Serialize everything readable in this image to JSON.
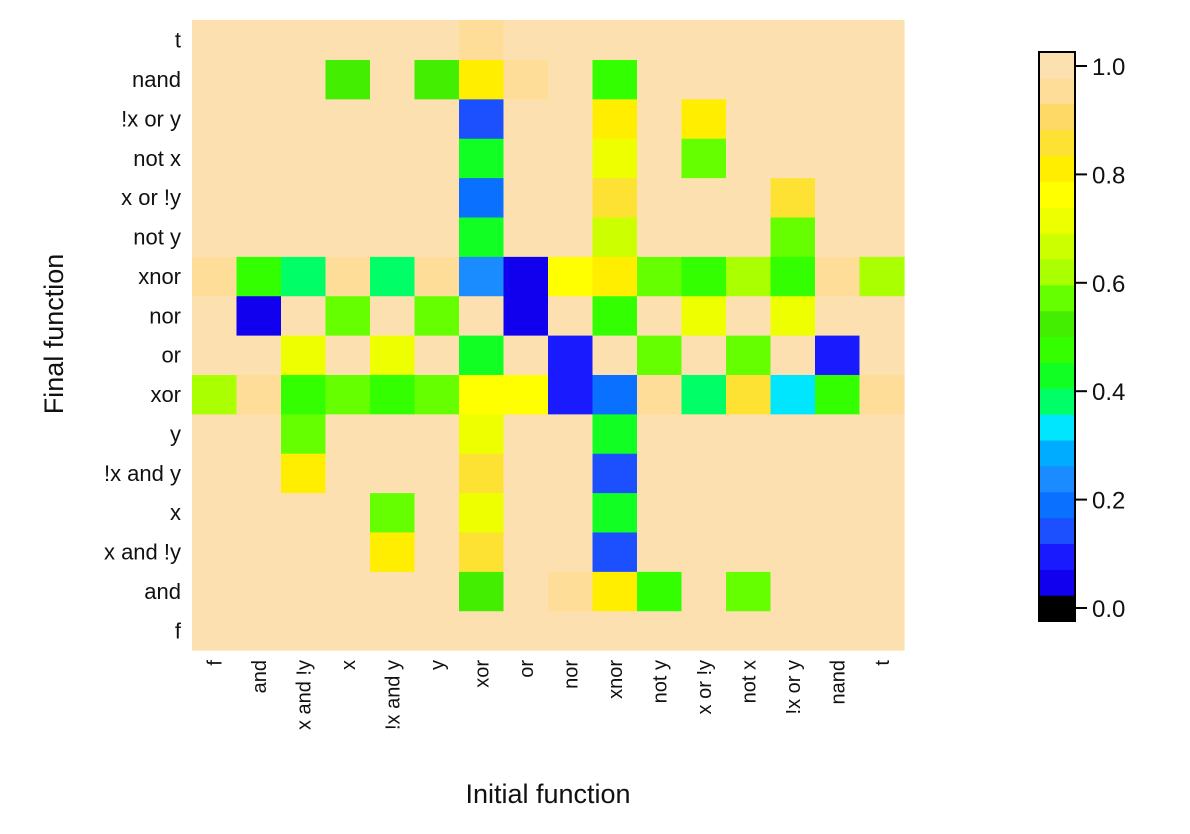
{
  "chart_data": {
    "type": "heatmap",
    "xlabel": "Initial function",
    "ylabel": "Final function",
    "x_categories": [
      "f",
      "and",
      "x and !y",
      "x",
      "!x and y",
      "y",
      "xor",
      "or",
      "nor",
      "xnor",
      "not y",
      "x or !y",
      "not x",
      "!x or y",
      "nand",
      "t"
    ],
    "y_categories": [
      "f",
      "and",
      "x and !y",
      "x",
      "!x and y",
      "y",
      "xor",
      "or",
      "nor",
      "xnor",
      "not y",
      "x or !y",
      "not x",
      "!x or y",
      "nand",
      "t"
    ],
    "values": [
      [
        1.0,
        1.0,
        1.0,
        1.0,
        1.0,
        1.0,
        1.0,
        1.0,
        1.0,
        0.98,
        1.0,
        1.0,
        1.0,
        1.0,
        1.0,
        1.0
      ],
      [
        1.0,
        1.0,
        1.0,
        1.0,
        1.0,
        1.0,
        0.53,
        1.0,
        0.93,
        0.83,
        0.48,
        1.0,
        0.58,
        1.0,
        1.0,
        1.0
      ],
      [
        1.0,
        1.0,
        1.0,
        1.0,
        0.83,
        1.0,
        0.88,
        1.0,
        1.0,
        0.13,
        1.0,
        1.0,
        1.0,
        1.0,
        1.0,
        1.0
      ],
      [
        1.0,
        1.0,
        1.0,
        1.0,
        0.58,
        1.0,
        0.73,
        1.0,
        0.98,
        0.43,
        1.0,
        1.0,
        1.0,
        1.0,
        0.98,
        1.0
      ],
      [
        1.0,
        1.0,
        0.83,
        1.0,
        1.0,
        1.0,
        0.88,
        1.0,
        1.0,
        0.13,
        1.0,
        1.0,
        1.0,
        1.0,
        1.0,
        1.0
      ],
      [
        1.0,
        1.0,
        0.58,
        1.0,
        1.0,
        1.0,
        0.73,
        1.0,
        0.98,
        0.43,
        1.0,
        1.0,
        1.0,
        1.0,
        0.98,
        1.0
      ],
      [
        0.63,
        0.93,
        0.48,
        0.58,
        0.48,
        0.58,
        0.78,
        0.78,
        0.08,
        0.18,
        0.93,
        0.38,
        0.88,
        0.33,
        0.48,
        0.93
      ],
      [
        1.0,
        1.0,
        0.73,
        1.0,
        0.73,
        1.0,
        0.43,
        1.0,
        0.08,
        0.98,
        0.58,
        1.0,
        0.58,
        1.0,
        0.08,
        1.0
      ],
      [
        1.0,
        0.03,
        1.0,
        0.58,
        1.0,
        0.58,
        0.98,
        0.03,
        1.0,
        0.48,
        1.0,
        0.73,
        1.0,
        0.73,
        1.0,
        1.0
      ],
      [
        0.93,
        0.48,
        0.38,
        0.93,
        0.38,
        0.93,
        0.23,
        0.03,
        0.78,
        0.83,
        0.58,
        0.48,
        0.63,
        0.48,
        0.93,
        0.63
      ],
      [
        1.0,
        0.98,
        1.0,
        1.0,
        1.0,
        1.0,
        0.43,
        0.98,
        1.0,
        0.68,
        1.0,
        1.0,
        1.0,
        0.58,
        1.0,
        1.0
      ],
      [
        1.0,
        1.0,
        1.0,
        1.0,
        1.0,
        1.0,
        0.18,
        1.0,
        1.0,
        0.88,
        1.0,
        1.0,
        1.0,
        0.88,
        1.0,
        1.0
      ],
      [
        1.0,
        0.98,
        1.0,
        1.0,
        1.0,
        1.0,
        0.43,
        0.98,
        1.0,
        0.73,
        1.0,
        0.58,
        1.0,
        1.0,
        1.0,
        1.0
      ],
      [
        1.0,
        1.0,
        1.0,
        1.0,
        1.0,
        1.0,
        0.13,
        1.0,
        1.0,
        0.83,
        1.0,
        0.83,
        1.0,
        1.0,
        1.0,
        1.0
      ],
      [
        1.0,
        1.0,
        1.0,
        0.53,
        1.0,
        0.53,
        0.83,
        0.93,
        1.0,
        0.48,
        1.0,
        1.0,
        1.0,
        1.0,
        1.0,
        1.0
      ],
      [
        1.0,
        1.0,
        1.0,
        1.0,
        1.0,
        1.0,
        0.93,
        1.0,
        1.0,
        1.0,
        1.0,
        1.0,
        1.0,
        1.0,
        1.0,
        1.0
      ]
    ],
    "values_note": "rows follow y_categories (bottom to top), columns follow x_categories",
    "zlim": [
      0.0,
      1.0
    ],
    "colorbar": {
      "ticks": [
        "0.0",
        "0.2",
        "0.4",
        "0.6",
        "0.8",
        "1.0"
      ],
      "tick_values": [
        0.0,
        0.2,
        0.4,
        0.6,
        0.8,
        1.0
      ],
      "placement": "right",
      "colors": [
        "#000000",
        "#1100ee",
        "#1a1aff",
        "#1c50ff",
        "#0a70ff",
        "#1a8cff",
        "#00acff",
        "#00e6ff",
        "#00ff66",
        "#11ff22",
        "#33ff00",
        "#44ee00",
        "#66ff00",
        "#aaff00",
        "#ccff00",
        "#eeff00",
        "#ffff00",
        "#ffee00",
        "#fee233",
        "#fed966",
        "#fedd99",
        "#fde0b0"
      ]
    },
    "grid": false
  }
}
